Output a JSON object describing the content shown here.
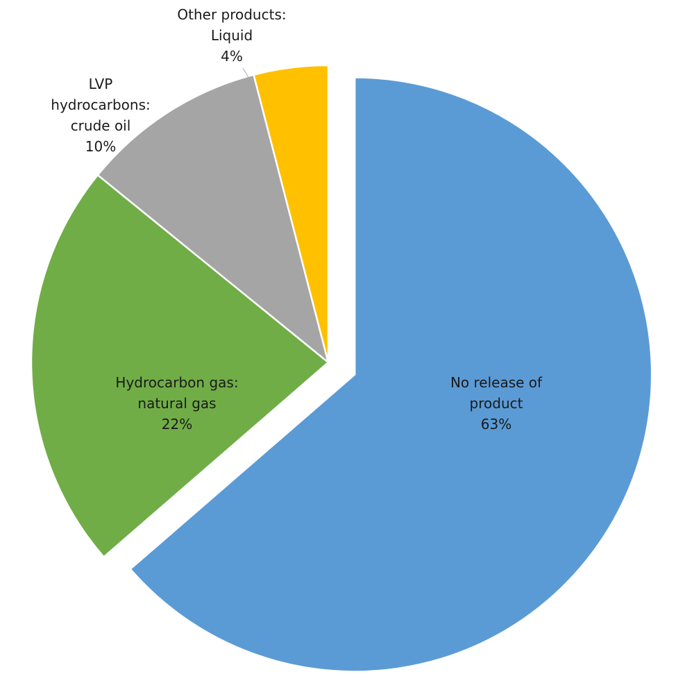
{
  "chart_data": {
    "type": "pie",
    "title": "",
    "slices": [
      {
        "label_lines": [
          "No release of",
          "product"
        ],
        "percent_label": "63%",
        "value": 63,
        "color": "#5b9bd5",
        "exploded": true
      },
      {
        "label_lines": [
          "Hydrocarbon gas:",
          "natural gas"
        ],
        "percent_label": "22%",
        "value": 22,
        "color": "#70ad47",
        "exploded": false
      },
      {
        "label_lines": [
          "LVP",
          "hydrocarbons:",
          "crude oil"
        ],
        "percent_label": "10%",
        "value": 10,
        "color": "#a5a5a5",
        "exploded": false
      },
      {
        "label_lines": [
          "Other products:",
          "Liquid"
        ],
        "percent_label": "4%",
        "value": 4,
        "color": "#ffc000",
        "exploded": false
      }
    ],
    "legend": "none",
    "data_labels": "category name and percentage"
  }
}
